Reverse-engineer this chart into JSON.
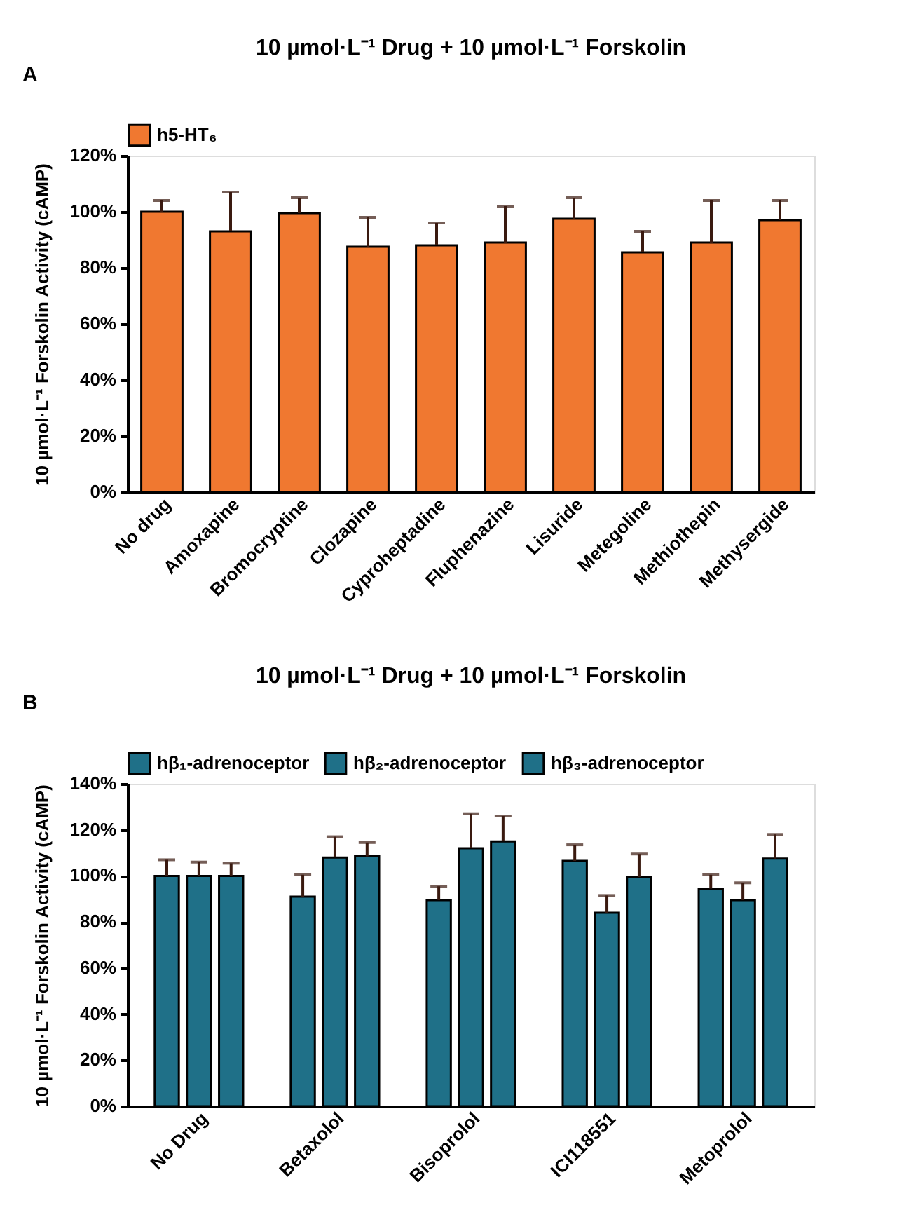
{
  "chart_data": [
    {
      "type": "bar",
      "title": "10 µmol·L⁻¹ Drug + 10 µmol·L⁻¹ Forskolin",
      "ylabel": "10 µmol·L⁻¹ Forskolin Activity (cAMP)",
      "annotations": [
        "A"
      ],
      "categories": [
        "No drug",
        "Amoxapine",
        "Bromocryptine",
        "Clozapine",
        "Cyproheptadine",
        "Fluphenazine",
        "Lisuride",
        "Metegoline",
        "Methiothepin",
        "Methysergide"
      ],
      "series": [
        {
          "name": "h5-HT₆",
          "color": "#f07830",
          "values": [
            100,
            93,
            99.5,
            87.5,
            88,
            89,
            97.5,
            85.5,
            89,
            97
          ],
          "errors": [
            [
              100,
              104
            ],
            [
              93,
              107
            ],
            [
              99.5,
              105
            ],
            [
              87.5,
              98
            ],
            [
              88,
              96
            ],
            [
              89,
              102
            ],
            [
              97.5,
              105
            ],
            [
              85.5,
              93
            ],
            [
              89,
              104
            ],
            [
              97,
              104
            ]
          ]
        }
      ],
      "ylim": [
        0,
        120
      ],
      "yticks": [
        {
          "value": 0,
          "label": "0%"
        },
        {
          "value": 20,
          "label": "20%"
        },
        {
          "value": 40,
          "label": "40%"
        },
        {
          "value": 60,
          "label": "60%"
        },
        {
          "value": 80,
          "label": "80%"
        },
        {
          "value": 100,
          "label": "100%"
        },
        {
          "value": 120,
          "label": "120%"
        }
      ],
      "grid": false,
      "legend": "top"
    },
    {
      "type": "bar",
      "title": "10 µmol·L⁻¹ Drug + 10 µmol·L⁻¹ Forskolin",
      "ylabel": "10 µmol·L⁻¹ Forskolin Activity (cAMP)",
      "annotations": [
        "B"
      ],
      "categories": [
        "No Drug",
        "Betaxolol",
        "Bisoprolol",
        "ICI118551",
        "Metoprolol"
      ],
      "series": [
        {
          "name": "hβ₁-adrenoceptor",
          "color": "#1f7088",
          "values": [
            100,
            91,
            89.5,
            106.5,
            94.5
          ],
          "errors": [
            [
              100,
              107
            ],
            [
              91,
              100.5
            ],
            [
              89.5,
              95.5
            ],
            [
              106.5,
              113.5
            ],
            [
              94.5,
              100.5
            ]
          ]
        },
        {
          "name": "hβ₂-adrenoceptor",
          "color": "#1f7088",
          "values": [
            100,
            108,
            112,
            84,
            89.5
          ],
          "errors": [
            [
              100,
              106
            ],
            [
              108,
              117
            ],
            [
              112,
              127
            ],
            [
              84,
              91.5
            ],
            [
              89.5,
              97
            ]
          ]
        },
        {
          "name": "hβ₃-adrenoceptor",
          "color": "#1f7088",
          "values": [
            100,
            108.5,
            115,
            99.5,
            107.5
          ],
          "errors": [
            [
              100,
              105.5
            ],
            [
              108.5,
              114.5
            ],
            [
              115,
              126
            ],
            [
              99.5,
              109.5
            ],
            [
              107.5,
              118
            ]
          ]
        }
      ],
      "ylim": [
        0,
        140
      ],
      "yticks": [
        {
          "value": 0,
          "label": "0%"
        },
        {
          "value": 20,
          "label": "20%"
        },
        {
          "value": 40,
          "label": "40%"
        },
        {
          "value": 60,
          "label": "60%"
        },
        {
          "value": 80,
          "label": "80%"
        },
        {
          "value": 100,
          "label": "100%"
        },
        {
          "value": 120,
          "label": "120%"
        },
        {
          "value": 140,
          "label": "140%"
        }
      ],
      "grid": false,
      "legend": "top"
    }
  ]
}
